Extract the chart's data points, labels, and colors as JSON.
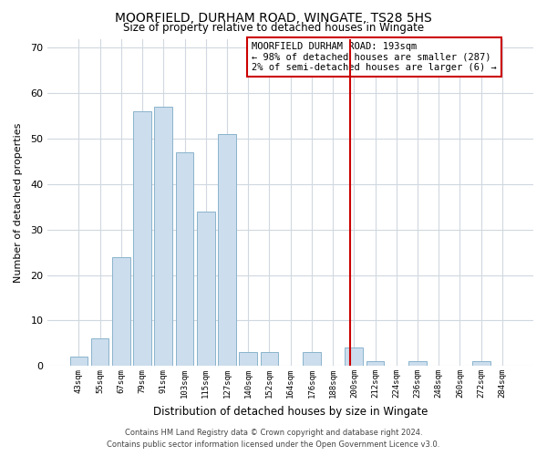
{
  "title": "MOORFIELD, DURHAM ROAD, WINGATE, TS28 5HS",
  "subtitle": "Size of property relative to detached houses in Wingate",
  "xlabel": "Distribution of detached houses by size in Wingate",
  "ylabel": "Number of detached properties",
  "bar_labels": [
    "43sqm",
    "55sqm",
    "67sqm",
    "79sqm",
    "91sqm",
    "103sqm",
    "115sqm",
    "127sqm",
    "140sqm",
    "152sqm",
    "164sqm",
    "176sqm",
    "188sqm",
    "200sqm",
    "212sqm",
    "224sqm",
    "236sqm",
    "248sqm",
    "260sqm",
    "272sqm",
    "284sqm"
  ],
  "bar_values": [
    2,
    6,
    24,
    56,
    57,
    47,
    34,
    51,
    3,
    3,
    0,
    3,
    0,
    4,
    1,
    0,
    1,
    0,
    0,
    1,
    0
  ],
  "bar_color": "#ccdded",
  "bar_edge_color": "#8ab4cc",
  "ylim": [
    0,
    72
  ],
  "yticks": [
    0,
    10,
    20,
    30,
    40,
    50,
    60,
    70
  ],
  "vline_x": 12.83,
  "vline_color": "#cc0000",
  "legend_title": "MOORFIELD DURHAM ROAD: 193sqm",
  "legend_line1": "← 98% of detached houses are smaller (287)",
  "legend_line2": "2% of semi-detached houses are larger (6) →",
  "footer1": "Contains HM Land Registry data © Crown copyright and database right 2024.",
  "footer2": "Contains public sector information licensed under the Open Government Licence v3.0.",
  "background_color": "#ffffff",
  "grid_color": "#d0d8e0"
}
